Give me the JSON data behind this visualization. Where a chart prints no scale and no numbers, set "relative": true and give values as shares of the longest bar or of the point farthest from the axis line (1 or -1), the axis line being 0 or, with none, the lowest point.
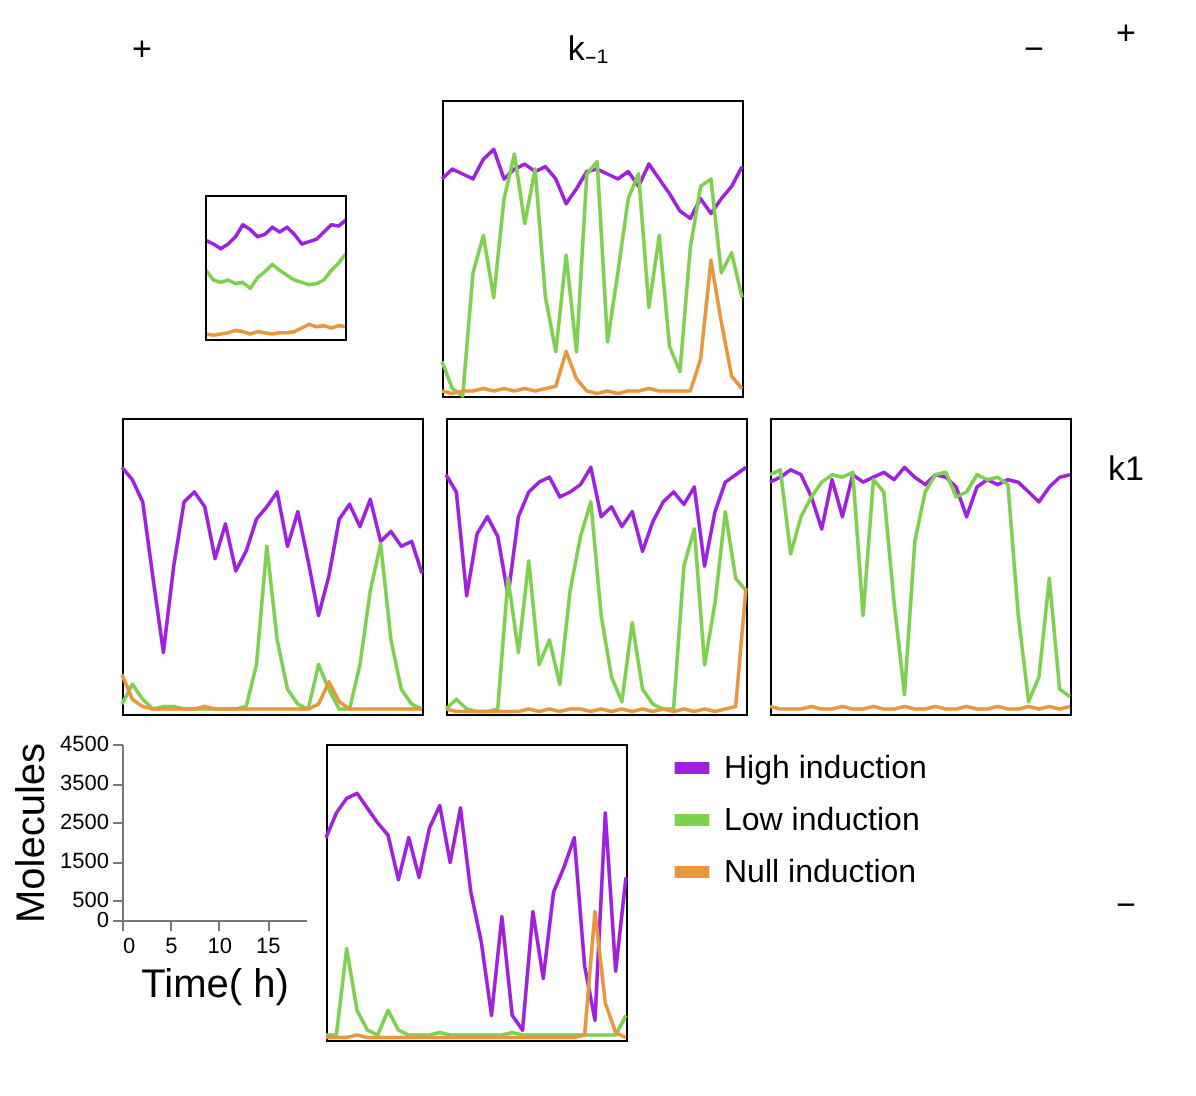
{
  "chart_data": [
    {
      "type": "other",
      "annotations": [
        "+",
        "k₋₁",
        "−"
      ]
    },
    {
      "type": "line",
      "relative": true,
      "categories": [
        null,
        null,
        null,
        null,
        null,
        null,
        null,
        null,
        null,
        null,
        null,
        null,
        null,
        null,
        null,
        null,
        null,
        null,
        null,
        null
      ],
      "series": [
        {
          "color": "#a020e0",
          "values": [
            0.83,
            0.8,
            0.76,
            0.8,
            0.86,
            0.96,
            0.92,
            0.86,
            0.88,
            0.94,
            0.9,
            0.94,
            0.88,
            0.8,
            0.82,
            0.84,
            0.9,
            0.96,
            0.95,
            1.0
          ]
        },
        {
          "color": "#7ed04f",
          "values": [
            0.58,
            0.5,
            0.48,
            0.5,
            0.47,
            0.48,
            0.43,
            0.52,
            0.57,
            0.63,
            0.58,
            0.54,
            0.5,
            0.48,
            0.46,
            0.47,
            0.5,
            0.58,
            0.64,
            0.72
          ]
        },
        {
          "color": "#e8973e",
          "values": [
            0.05,
            0.04,
            0.05,
            0.06,
            0.08,
            0.07,
            0.05,
            0.07,
            0.06,
            0.05,
            0.06,
            0.06,
            0.07,
            0.1,
            0.13,
            0.11,
            0.12,
            0.1,
            0.12,
            0.11
          ]
        }
      ]
    },
    {
      "type": "line",
      "relative": true,
      "categories": [
        null,
        null,
        null,
        null,
        null,
        null,
        null,
        null,
        null,
        null,
        null,
        null,
        null,
        null,
        null,
        null,
        null,
        null,
        null,
        null,
        null,
        null,
        null,
        null,
        null,
        null,
        null,
        null,
        null,
        null
      ],
      "series": [
        {
          "color": "#a020e0",
          "values": [
            0.88,
            0.92,
            0.9,
            0.88,
            0.96,
            1.0,
            0.88,
            0.92,
            0.94,
            0.91,
            0.93,
            0.88,
            0.78,
            0.84,
            0.91,
            0.92,
            0.9,
            0.88,
            0.91,
            0.85,
            0.94,
            0.88,
            0.82,
            0.75,
            0.72,
            0.8,
            0.74,
            0.8,
            0.85,
            0.93
          ]
        },
        {
          "color": "#7ed04f",
          "values": [
            0.14,
            0.03,
            0.0,
            0.5,
            0.65,
            0.4,
            0.8,
            0.98,
            0.7,
            0.92,
            0.4,
            0.18,
            0.57,
            0.18,
            0.9,
            0.95,
            0.22,
            0.5,
            0.8,
            0.9,
            0.36,
            0.65,
            0.2,
            0.1,
            0.6,
            0.85,
            0.88,
            0.5,
            0.58,
            0.4
          ]
        },
        {
          "color": "#e8973e",
          "values": [
            0.02,
            0.01,
            0.02,
            0.02,
            0.03,
            0.02,
            0.03,
            0.02,
            0.03,
            0.02,
            0.03,
            0.04,
            0.18,
            0.07,
            0.02,
            0.01,
            0.02,
            0.01,
            0.02,
            0.02,
            0.03,
            0.02,
            0.02,
            0.02,
            0.02,
            0.15,
            0.55,
            0.3,
            0.08,
            0.03
          ]
        }
      ]
    },
    {
      "type": "line",
      "relative": true,
      "categories": [
        null,
        null,
        null,
        null,
        null,
        null,
        null,
        null,
        null,
        null,
        null,
        null,
        null,
        null,
        null,
        null,
        null,
        null,
        null,
        null,
        null,
        null,
        null,
        null,
        null,
        null,
        null,
        null,
        null,
        null
      ],
      "series": [
        {
          "color": "#a020e0",
          "values": [
            1.0,
            0.95,
            0.86,
            0.55,
            0.25,
            0.6,
            0.86,
            0.9,
            0.84,
            0.63,
            0.77,
            0.58,
            0.66,
            0.79,
            0.84,
            0.9,
            0.68,
            0.82,
            0.62,
            0.4,
            0.56,
            0.79,
            0.85,
            0.76,
            0.87,
            0.7,
            0.74,
            0.68,
            0.7,
            0.57
          ]
        },
        {
          "color": "#7ed04f",
          "values": [
            0.04,
            0.12,
            0.06,
            0.02,
            0.03,
            0.03,
            0.02,
            0.02,
            0.02,
            0.02,
            0.02,
            0.02,
            0.03,
            0.2,
            0.68,
            0.3,
            0.1,
            0.04,
            0.02,
            0.2,
            0.1,
            0.02,
            0.02,
            0.2,
            0.5,
            0.69,
            0.3,
            0.1,
            0.04,
            0.02
          ]
        },
        {
          "color": "#e8973e",
          "values": [
            0.16,
            0.06,
            0.03,
            0.02,
            0.02,
            0.02,
            0.02,
            0.02,
            0.03,
            0.02,
            0.02,
            0.02,
            0.02,
            0.02,
            0.02,
            0.02,
            0.02,
            0.02,
            0.02,
            0.04,
            0.13,
            0.05,
            0.02,
            0.02,
            0.02,
            0.02,
            0.02,
            0.02,
            0.02,
            0.02
          ]
        }
      ]
    },
    {
      "type": "line",
      "relative": true,
      "categories": [
        null,
        null,
        null,
        null,
        null,
        null,
        null,
        null,
        null,
        null,
        null,
        null,
        null,
        null,
        null,
        null,
        null,
        null,
        null,
        null,
        null,
        null,
        null,
        null,
        null,
        null,
        null,
        null,
        null,
        null
      ],
      "series": [
        {
          "color": "#a020e0",
          "values": [
            0.97,
            0.9,
            0.48,
            0.73,
            0.8,
            0.72,
            0.48,
            0.8,
            0.9,
            0.94,
            0.96,
            0.88,
            0.9,
            0.93,
            1.0,
            0.8,
            0.84,
            0.76,
            0.82,
            0.66,
            0.78,
            0.86,
            0.9,
            0.85,
            0.92,
            0.6,
            0.82,
            0.94,
            0.97,
            1.0
          ]
        },
        {
          "color": "#7ed04f",
          "values": [
            0.02,
            0.06,
            0.02,
            0.01,
            0.01,
            0.02,
            0.55,
            0.25,
            0.62,
            0.2,
            0.3,
            0.12,
            0.5,
            0.72,
            0.86,
            0.4,
            0.15,
            0.05,
            0.37,
            0.1,
            0.04,
            0.02,
            0.02,
            0.6,
            0.75,
            0.2,
            0.45,
            0.82,
            0.55,
            0.5
          ]
        },
        {
          "color": "#e8973e",
          "values": [
            0.02,
            0.01,
            0.01,
            0.01,
            0.01,
            0.01,
            0.01,
            0.01,
            0.02,
            0.01,
            0.02,
            0.01,
            0.02,
            0.02,
            0.01,
            0.02,
            0.01,
            0.02,
            0.01,
            0.02,
            0.01,
            0.02,
            0.01,
            0.02,
            0.01,
            0.02,
            0.01,
            0.02,
            0.03,
            0.51
          ]
        }
      ]
    },
    {
      "type": "line",
      "relative": true,
      "categories": [
        null,
        null,
        null,
        null,
        null,
        null,
        null,
        null,
        null,
        null,
        null,
        null,
        null,
        null,
        null,
        null,
        null,
        null,
        null,
        null,
        null,
        null,
        null,
        null,
        null,
        null,
        null,
        null,
        null,
        null
      ],
      "series": [
        {
          "color": "#a020e0",
          "values": [
            0.94,
            0.96,
            0.99,
            0.97,
            0.88,
            0.75,
            0.95,
            0.8,
            0.97,
            0.94,
            0.96,
            0.98,
            0.95,
            1.0,
            0.96,
            0.93,
            0.97,
            0.96,
            0.92,
            0.8,
            0.92,
            0.95,
            0.93,
            0.95,
            0.94,
            0.9,
            0.86,
            0.92,
            0.96,
            0.97
          ]
        },
        {
          "color": "#7ed04f",
          "values": [
            0.97,
            0.99,
            0.65,
            0.8,
            0.88,
            0.94,
            0.97,
            0.96,
            0.98,
            0.4,
            0.95,
            0.9,
            0.45,
            0.08,
            0.7,
            0.9,
            0.97,
            0.98,
            0.88,
            0.9,
            0.97,
            0.95,
            0.96,
            0.93,
            0.4,
            0.05,
            0.15,
            0.55,
            0.1,
            0.07
          ]
        },
        {
          "color": "#e8973e",
          "values": [
            0.03,
            0.02,
            0.02,
            0.02,
            0.03,
            0.02,
            0.02,
            0.03,
            0.02,
            0.02,
            0.03,
            0.02,
            0.02,
            0.03,
            0.02,
            0.02,
            0.03,
            0.02,
            0.02,
            0.03,
            0.02,
            0.02,
            0.03,
            0.02,
            0.02,
            0.03,
            0.02,
            0.03,
            0.02,
            0.03
          ]
        }
      ]
    },
    {
      "type": "line",
      "xlabel": "Time( h)",
      "ylabel": "Molecules",
      "xlim": [
        0,
        19
      ],
      "xticks": [
        0,
        5,
        10,
        15
      ],
      "ylim": [
        0,
        4500
      ],
      "yticks": [
        0,
        500,
        1500,
        2500,
        3500,
        4500
      ]
    },
    {
      "type": "line",
      "relative": true,
      "legend": "right",
      "categories": [
        null,
        null,
        null,
        null,
        null,
        null,
        null,
        null,
        null,
        null,
        null,
        null,
        null,
        null,
        null,
        null,
        null,
        null,
        null,
        null,
        null,
        null,
        null,
        null,
        null,
        null,
        null,
        null,
        null,
        null
      ],
      "series": [
        {
          "name": "High induction",
          "color": "#a020e0",
          "values": [
            0.82,
            0.92,
            0.98,
            1.0,
            0.94,
            0.88,
            0.83,
            0.65,
            0.82,
            0.66,
            0.86,
            0.95,
            0.72,
            0.94,
            0.6,
            0.4,
            0.1,
            0.5,
            0.1,
            0.04,
            0.52,
            0.25,
            0.6,
            0.7,
            0.82,
            0.3,
            0.08,
            0.92,
            0.28,
            0.66
          ]
        },
        {
          "name": "Low induction",
          "color": "#7ed04f",
          "values": [
            0.02,
            0.02,
            0.37,
            0.12,
            0.04,
            0.02,
            0.12,
            0.04,
            0.02,
            0.02,
            0.02,
            0.03,
            0.02,
            0.02,
            0.02,
            0.02,
            0.02,
            0.02,
            0.03,
            0.02,
            0.02,
            0.02,
            0.02,
            0.02,
            0.02,
            0.02,
            0.02,
            0.02,
            0.02,
            0.1
          ]
        },
        {
          "name": "Null induction",
          "color": "#e8973e",
          "values": [
            0.01,
            0.01,
            0.01,
            0.02,
            0.01,
            0.01,
            0.01,
            0.01,
            0.01,
            0.01,
            0.01,
            0.01,
            0.01,
            0.01,
            0.01,
            0.01,
            0.01,
            0.01,
            0.01,
            0.01,
            0.01,
            0.01,
            0.01,
            0.01,
            0.01,
            0.02,
            0.52,
            0.15,
            0.03,
            0.01
          ]
        }
      ]
    },
    {
      "type": "other",
      "annotations": [
        "+",
        "k1",
        "−"
      ]
    }
  ]
}
